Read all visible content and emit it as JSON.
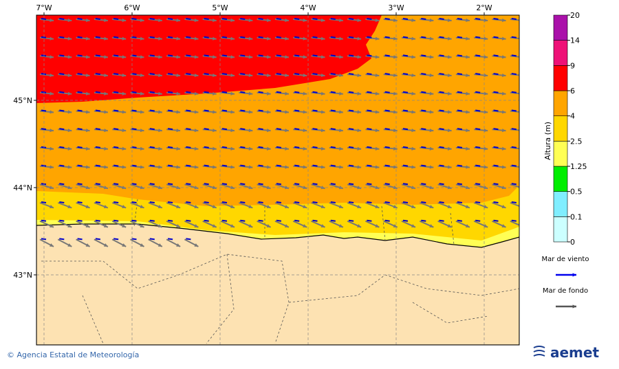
{
  "map": {
    "lon_labels": [
      "7°W",
      "6°W",
      "5°W",
      "4°W",
      "3°W",
      "2°W"
    ],
    "lat_labels": [
      "45°N",
      "44°N",
      "43°N"
    ]
  },
  "colorbar": {
    "label": "Altura (m)",
    "ticks": [
      0,
      0.1,
      0.5,
      1.25,
      2.5,
      4,
      6,
      9,
      14,
      20
    ],
    "colors": [
      "#ccffff",
      "#80eeff",
      "#00ee00",
      "#ffff55",
      "#ffd700",
      "#ffa500",
      "#ff0000",
      "#ee1177",
      "#aa11aa"
    ]
  },
  "legend": {
    "items": [
      {
        "label": "Mar de viento",
        "color": "#0000ee"
      },
      {
        "label": "Mar de fondo",
        "color": "#555555"
      }
    ]
  },
  "footer": {
    "credit": "© Agencia Estatal de Meteorología",
    "logo": "aemet"
  }
}
